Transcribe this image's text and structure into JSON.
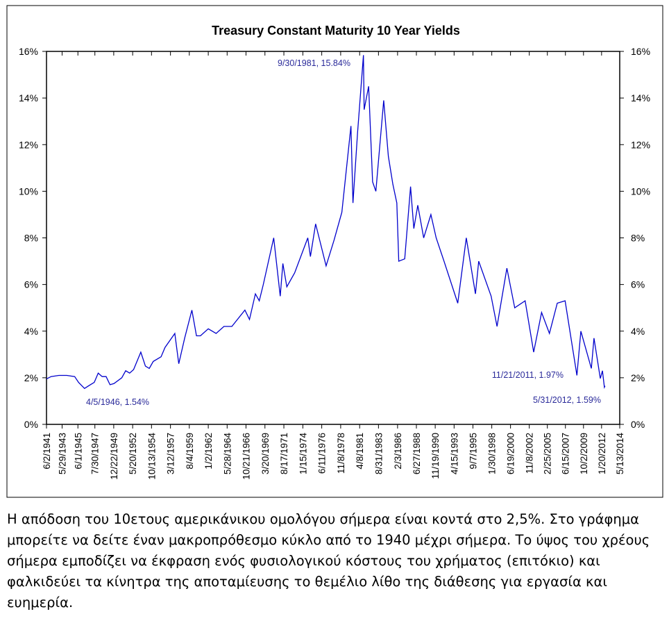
{
  "chart_data": {
    "type": "line",
    "title": "Treasury Constant Maturity 10 Year Yields",
    "color": "#0000cc",
    "annotations": [
      "9/30/1981, 15.84%",
      "4/5/1946, 1.54%",
      "11/21/2011, 1.97%",
      "5/31/2012, 1.59%"
    ],
    "x": [
      "6/2/1941",
      "1/1/1942",
      "1/1/1943",
      "1/1/1944",
      "1/1/1945",
      "7/1/1945",
      "4/5/1946",
      "1/1/1947",
      "7/1/1947",
      "1/1/1948",
      "7/1/1948",
      "1/1/1949",
      "7/1/1949",
      "1/1/1950",
      "1/1/1951",
      "7/1/1951",
      "1/1/1952",
      "7/1/1952",
      "6/1/1953",
      "1/1/1954",
      "7/1/1954",
      "1/1/1955",
      "1/1/1956",
      "7/1/1956",
      "10/1/1957",
      "4/1/1958",
      "1/1/1959",
      "12/1/1959",
      "7/1/1960",
      "1/1/1961",
      "1/1/1962",
      "1/1/1963",
      "1/1/1964",
      "1/1/1965",
      "9/1/1966",
      "4/1/1967",
      "1/1/1968",
      "7/1/1968",
      "1/1/1969",
      "5/1/1970",
      "3/1/1971",
      "7/1/1971",
      "1/1/1972",
      "1/1/1973",
      "9/1/1974",
      "1/1/1975",
      "9/1/1975",
      "1/1/1977",
      "1/1/1978",
      "1/1/1979",
      "3/1/1980",
      "6/1/1980",
      "1/1/1981",
      "9/30/1981",
      "11/1/1981",
      "6/1/1982",
      "12/1/1982",
      "5/1/1983",
      "5/1/1984",
      "12/1/1984",
      "7/1/1985",
      "1/1/1986",
      "4/1/1986",
      "1/1/1987",
      "10/1/1987",
      "3/1/1988",
      "9/1/1988",
      "6/1/1989",
      "5/1/1990",
      "1/1/1991",
      "1/1/1992",
      "10/1/1993",
      "11/1/1994",
      "1/1/1996",
      "6/1/1996",
      "1/1/1998",
      "10/1/1998",
      "1/1/2000",
      "1/1/2001",
      "5/1/2002",
      "6/1/2003",
      "6/1/2004",
      "6/1/2005",
      "6/1/2006",
      "6/1/2007",
      "12/1/2008",
      "6/1/2009",
      "10/1/2010",
      "2/1/2011",
      "11/21/2011",
      "3/1/2012",
      "5/31/2012",
      "6/29/2012"
    ],
    "values": [
      1.95,
      2.05,
      2.1,
      2.1,
      2.05,
      1.8,
      1.54,
      1.7,
      1.8,
      2.2,
      2.05,
      2.05,
      1.7,
      1.75,
      2.0,
      2.3,
      2.2,
      2.35,
      3.1,
      2.5,
      2.4,
      2.7,
      2.9,
      3.3,
      3.9,
      2.6,
      3.7,
      4.9,
      3.8,
      3.8,
      4.1,
      3.9,
      4.2,
      4.2,
      4.9,
      4.5,
      5.6,
      5.3,
      6.0,
      8.0,
      5.5,
      6.9,
      5.9,
      6.5,
      8.0,
      7.2,
      8.6,
      6.8,
      7.9,
      9.1,
      12.8,
      9.5,
      12.5,
      15.84,
      13.5,
      14.5,
      10.4,
      10.0,
      13.9,
      11.5,
      10.3,
      9.5,
      7.0,
      7.1,
      10.2,
      8.4,
      9.4,
      8.0,
      9.0,
      8.0,
      7.0,
      5.2,
      8.0,
      5.6,
      7.0,
      5.5,
      4.2,
      6.7,
      5.0,
      5.3,
      3.1,
      4.8,
      3.9,
      5.2,
      5.3,
      2.1,
      4.0,
      2.4,
      3.7,
      1.97,
      2.3,
      1.59,
      1.65
    ],
    "xlim": [
      "6/2/1941",
      "5/13/2014"
    ],
    "xticks": [
      "6/2/1941",
      "5/29/1943",
      "6/1/1945",
      "7/30/1947",
      "12/22/1949",
      "5/20/1952",
      "10/13/1954",
      "3/12/1957",
      "8/4/1959",
      "1/2/1962",
      "5/28/1964",
      "10/21/1966",
      "3/20/1969",
      "8/17/1971",
      "1/15/1974",
      "6/11/1976",
      "11/8/1978",
      "4/8/1981",
      "8/31/1983",
      "2/3/1986",
      "6/27/1988",
      "11/19/1990",
      "4/15/1993",
      "9/7/1995",
      "1/30/1998",
      "6/19/2000",
      "11/8/2002",
      "2/25/2005",
      "6/15/2007",
      "10/2/2009",
      "1/20/2012",
      "5/13/2014"
    ],
    "ylim": [
      0,
      16
    ],
    "yticks": [
      {
        "value": 0,
        "label": "0%"
      },
      {
        "value": 2,
        "label": "2%"
      },
      {
        "value": 4,
        "label": "4%"
      },
      {
        "value": 6,
        "label": "6%"
      },
      {
        "value": 8,
        "label": "8%"
      },
      {
        "value": 10,
        "label": "10%"
      },
      {
        "value": 12,
        "label": "12%"
      },
      {
        "value": 14,
        "label": "14%"
      },
      {
        "value": 16,
        "label": "16%"
      }
    ],
    "right_axis": true
  },
  "caption": {
    "lines": [
      "Η απόδοση του 10ετους αμερικάνικου ομολόγου σήμερα είναι κοντά στο 2,5%. Στο γράφημα",
      "μπορείτε να δείτε έναν μακροπρόθεσμο κύκλο από το 1940 μέχρι σήμερα. Το ύψος του χρέους",
      "σήμερα εμποδίζει να έκφραση ενός φυσιολογικού κόστους του χρήματος (επιτόκιο) και",
      "φαλκιδεύει τα κίνητρα της αποταμίευσης το θεμέλιο λίθο της διάθεσης για εργασία και",
      "ευημερία."
    ]
  }
}
